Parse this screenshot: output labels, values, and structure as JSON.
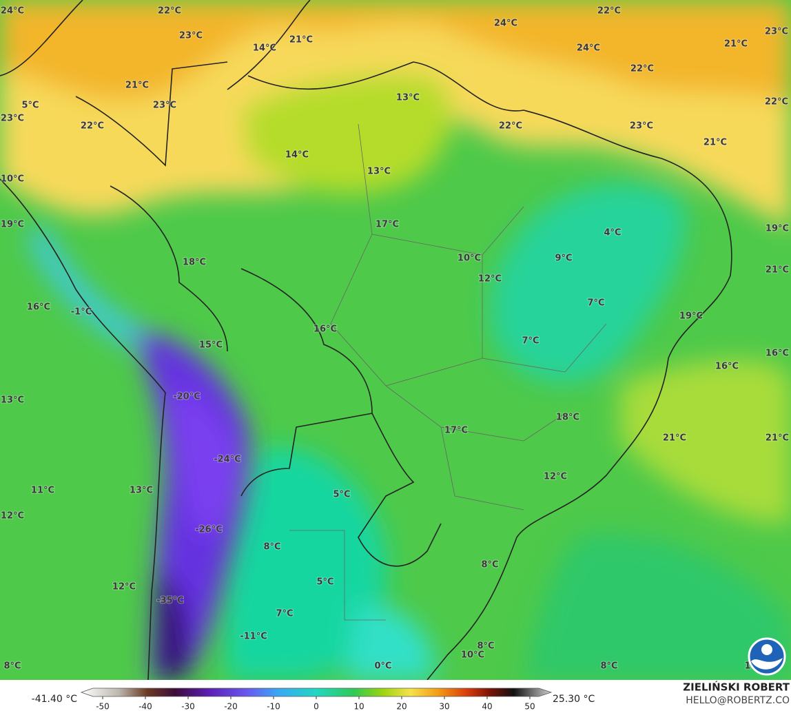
{
  "map": {
    "labels": [
      "24°C",
      "22°C",
      "23°C",
      "14°C",
      "21°C",
      "24°C",
      "22°C",
      "23°C",
      "24°C",
      "21°C",
      "22°C",
      "21°C",
      "13°C",
      "5°C",
      "23°C",
      "22°C",
      "23°C",
      "22°C",
      "22°C",
      "23°C",
      "21°C",
      "14°C",
      "13°C",
      "10°C",
      "19°C",
      "17°C",
      "19°C",
      "4°C",
      "10°C",
      "9°C",
      "18°C",
      "21°C",
      "12°C",
      "7°C",
      "16°C",
      "-1°C",
      "19°C",
      "16°C",
      "7°C",
      "15°C",
      "16°C",
      "16°C",
      "-20°C",
      "13°C",
      "18°C",
      "17°C",
      "21°C",
      "21°C",
      "-24°C",
      "12°C",
      "11°C",
      "13°C",
      "5°C",
      "12°C",
      "-26°C",
      "8°C",
      "8°C",
      "5°C",
      "12°C",
      "-35°C",
      "7°C",
      "-11°C",
      "8°C",
      "10°C",
      "0°C",
      "8°C",
      "8°C",
      "1"
    ]
  },
  "colorbar": {
    "min_label": "-41.40 °C",
    "max_label": "25.30 °C",
    "xlim": [
      -55,
      55
    ],
    "ticks": [
      -50,
      -40,
      -30,
      -20,
      -10,
      0,
      10,
      20,
      30,
      40,
      50
    ]
  },
  "credits": {
    "author": "ZIELIŃSKI ROBERT",
    "contact": "HELLO@ROBERTZ.CO"
  }
}
